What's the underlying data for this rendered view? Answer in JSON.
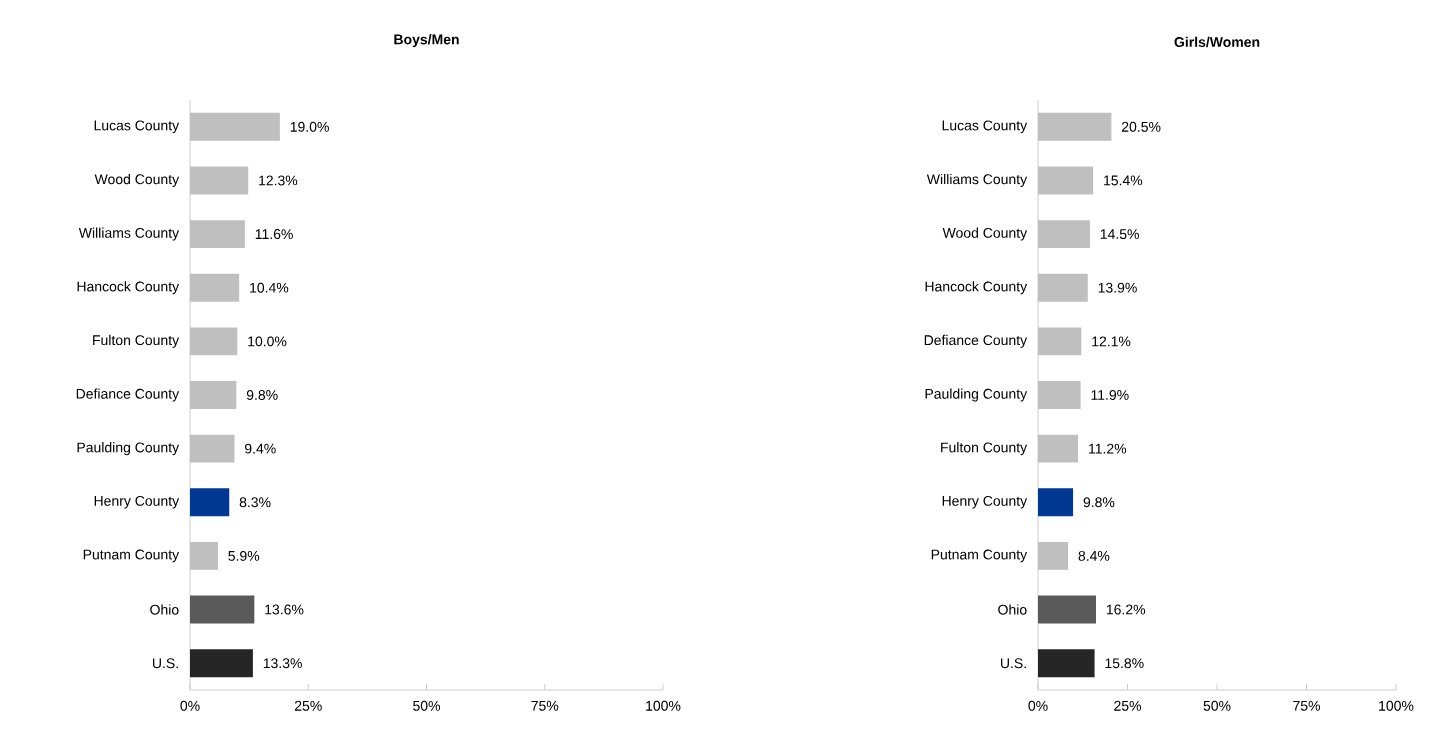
{
  "chart_data": [
    {
      "type": "bar",
      "orientation": "horizontal",
      "title": "Boys/Men",
      "categories": [
        "Lucas County",
        "Wood County",
        "Williams County",
        "Hancock County",
        "Fulton County",
        "Defiance County",
        "Paulding County",
        "Henry County",
        "Putnam County",
        "Ohio",
        "U.S."
      ],
      "values": [
        19.0,
        12.3,
        11.6,
        10.4,
        10.0,
        9.8,
        9.4,
        8.3,
        5.9,
        13.6,
        13.3
      ],
      "value_labels": [
        "19.0%",
        "12.3%",
        "11.6%",
        "10.4%",
        "10.0%",
        "9.8%",
        "9.4%",
        "8.3%",
        "5.9%",
        "13.6%",
        "13.3%"
      ],
      "colors": [
        "#bfbfbf",
        "#bfbfbf",
        "#bfbfbf",
        "#bfbfbf",
        "#bfbfbf",
        "#bfbfbf",
        "#bfbfbf",
        "#003893",
        "#bfbfbf",
        "#595959",
        "#262626"
      ],
      "xlim": [
        0,
        100
      ],
      "xticks": [
        {
          "value": 0,
          "label": "0%"
        },
        {
          "value": 25,
          "label": "25%"
        },
        {
          "value": 50,
          "label": "50%"
        },
        {
          "value": 75,
          "label": "75%"
        },
        {
          "value": 100,
          "label": "100%"
        }
      ]
    },
    {
      "type": "bar",
      "orientation": "horizontal",
      "title": "Girls/Women",
      "categories": [
        "Lucas County",
        "Williams County",
        "Wood County",
        "Hancock County",
        "Defiance County",
        "Paulding County",
        "Fulton County",
        "Henry County",
        "Putnam County",
        "Ohio",
        "U.S."
      ],
      "values": [
        20.5,
        15.4,
        14.5,
        13.9,
        12.1,
        11.9,
        11.2,
        9.8,
        8.4,
        16.2,
        15.8
      ],
      "value_labels": [
        "20.5%",
        "15.4%",
        "14.5%",
        "13.9%",
        "12.1%",
        "11.9%",
        "11.2%",
        "9.8%",
        "8.4%",
        "16.2%",
        "15.8%"
      ],
      "colors": [
        "#bfbfbf",
        "#bfbfbf",
        "#bfbfbf",
        "#bfbfbf",
        "#bfbfbf",
        "#bfbfbf",
        "#bfbfbf",
        "#003893",
        "#bfbfbf",
        "#595959",
        "#262626"
      ],
      "xlim": [
        0,
        100
      ],
      "xticks": [
        {
          "value": 0,
          "label": "0%"
        },
        {
          "value": 25,
          "label": "25%"
        },
        {
          "value": 50,
          "label": "50%"
        },
        {
          "value": 75,
          "label": "75%"
        },
        {
          "value": 100,
          "label": "100%"
        }
      ]
    }
  ]
}
